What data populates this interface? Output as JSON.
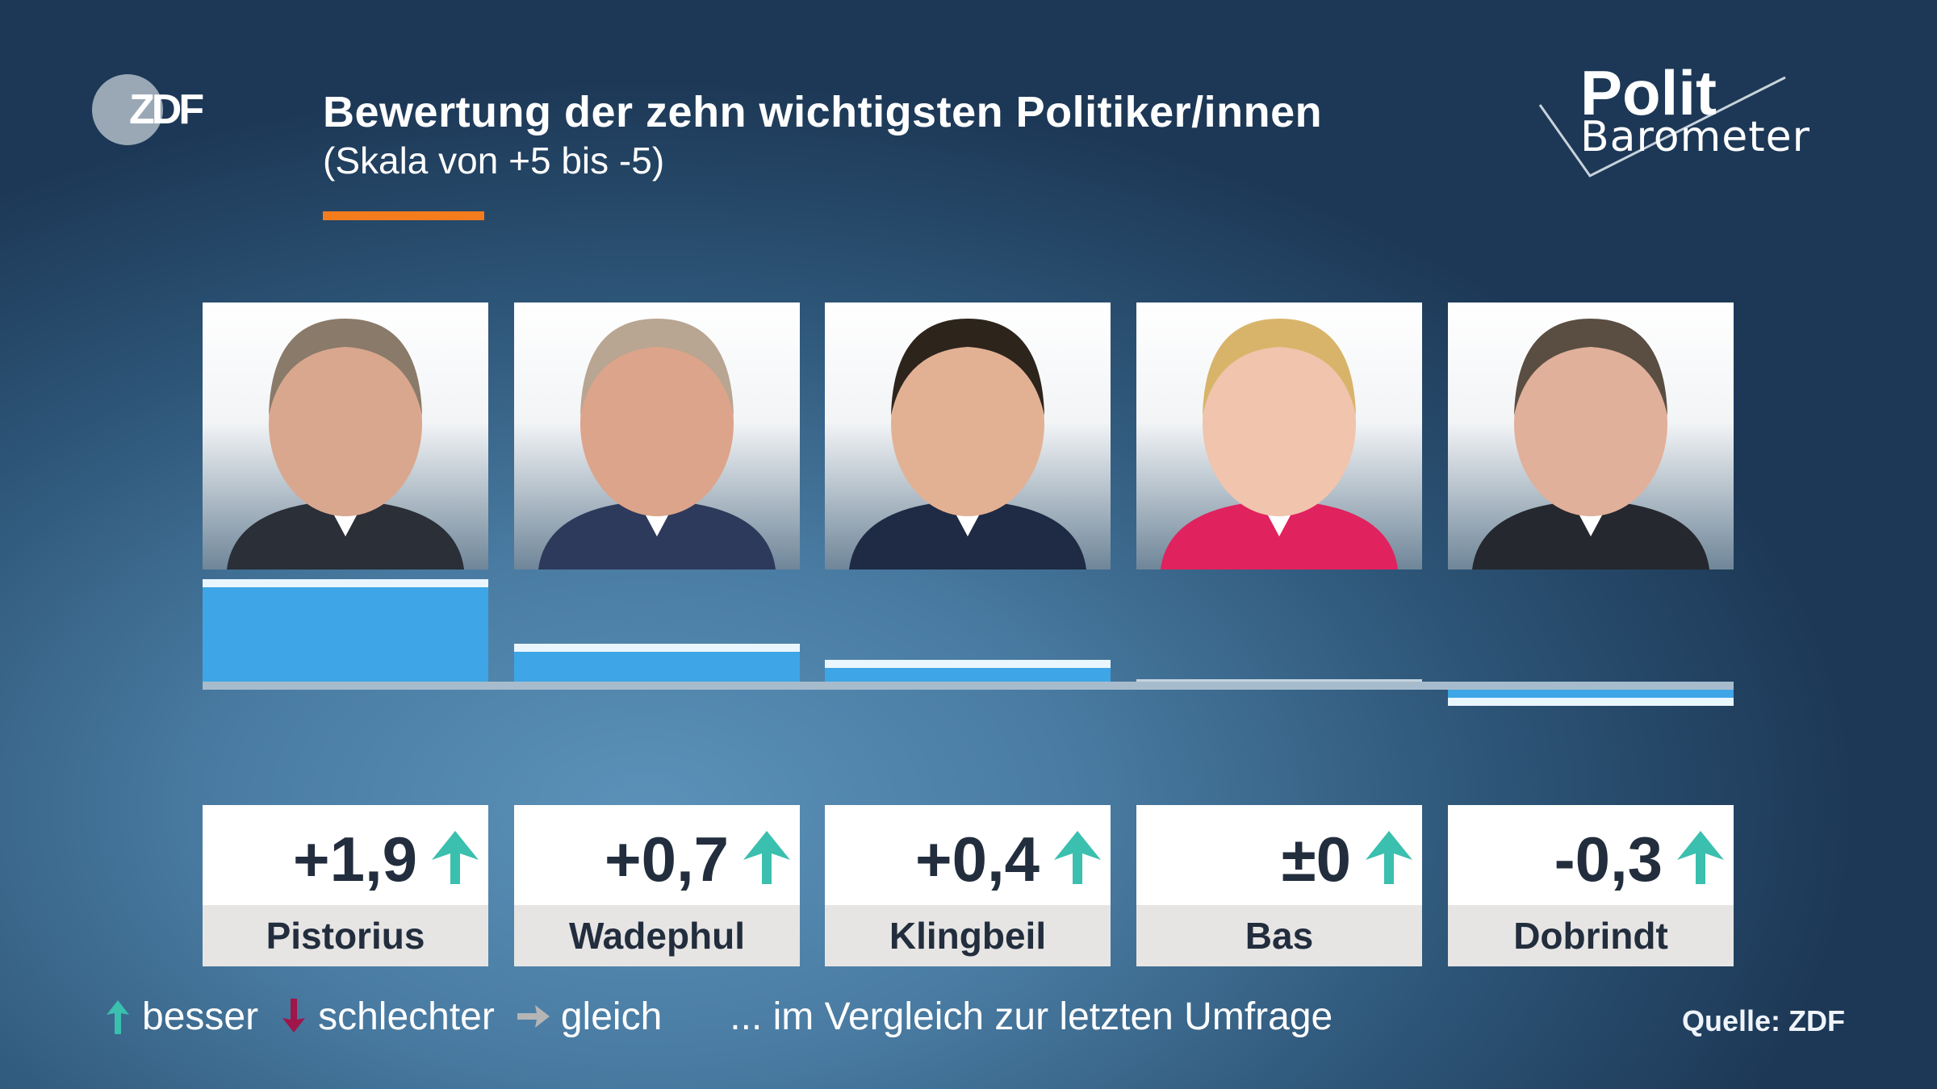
{
  "header": {
    "logo": "ZDF",
    "title": "Bewertung der zehn wichtigsten Politiker/innen",
    "subtitle": "(Skala von +5 bis -5)",
    "brand_line1": "Polit",
    "brand_line2": "Barometer",
    "accent_color": "#f47c1c"
  },
  "chart_data": {
    "type": "bar",
    "ylim": [
      -5,
      5
    ],
    "categories": [
      "Pistorius",
      "Wadephul",
      "Klingbeil",
      "Bas",
      "Dobrindt"
    ],
    "values": [
      1.9,
      0.7,
      0.4,
      0,
      -0.3
    ],
    "value_labels": [
      "+1,9",
      "+0,7",
      "+0,4",
      "±0",
      "-0,3"
    ],
    "trend": [
      "up",
      "up",
      "up",
      "up",
      "up"
    ],
    "bar_color": "#3ea6e6"
  },
  "legend": {
    "better": "besser",
    "worse": "schlechter",
    "same": "gleich",
    "note": "... im Vergleich zur letzten Umfrage",
    "colors": {
      "better": "#3bbfae",
      "worse": "#a0154a",
      "same": "#b5b5b5"
    }
  },
  "source": "Quelle: ZDF"
}
